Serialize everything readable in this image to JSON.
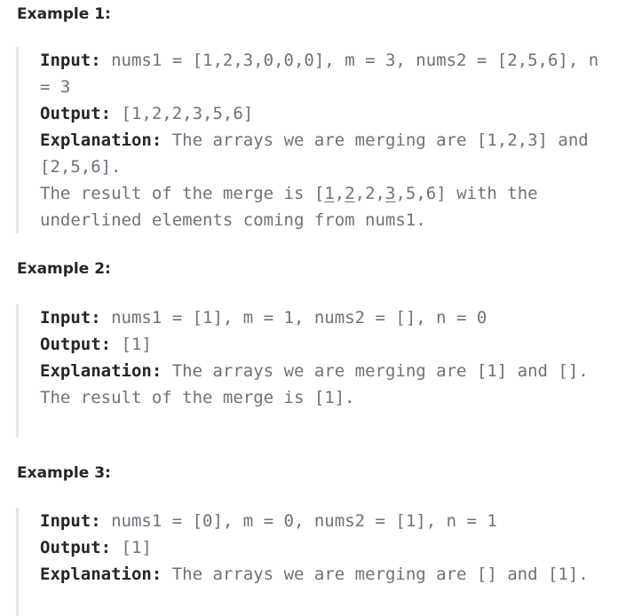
{
  "examples": [
    {
      "heading": "Example 1:",
      "input_label": "Input:",
      "input_value": "nums1 = [1,2,3,0,0,0], m = 3, nums2 = [2,5,6], n = 3",
      "output_label": "Output:",
      "output_value": "[1,2,2,3,5,6]",
      "explanation_label": "Explanation:",
      "explanation_value": "The arrays we are merging are [1,2,3] and [2,5,6].",
      "extra": {
        "prefix": "The result of the merge is [",
        "u1": "1",
        "c1": ",",
        "u2": "2",
        "c2": ",2,",
        "u3": "3",
        "suffix": ",5,6] with the underlined elements coming from nums1."
      }
    },
    {
      "heading": "Example 2:",
      "input_label": "Input:",
      "input_value": "nums1 = [1], m = 1, nums2 = [], n = 0",
      "output_label": "Output:",
      "output_value": "[1]",
      "explanation_label": "Explanation:",
      "explanation_value": "The arrays we are merging are [1] and [].",
      "extra_text": "The result of the merge is [1]."
    },
    {
      "heading": "Example 3:",
      "input_label": "Input:",
      "input_value": "nums1 = [0], m = 0, nums2 = [1], n = 1",
      "output_label": "Output:",
      "output_value": "[1]",
      "explanation_label": "Explanation:",
      "explanation_value": "The arrays we are merging are [] and [1]."
    }
  ]
}
